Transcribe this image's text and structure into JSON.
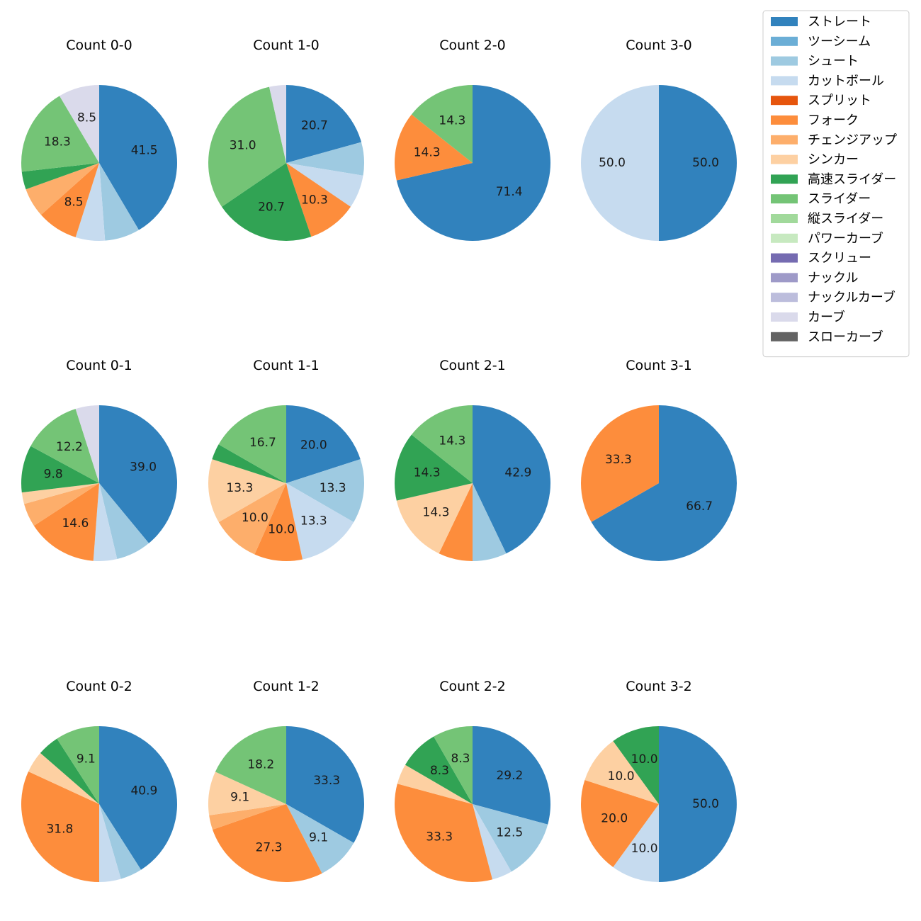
{
  "chart_data": {
    "type": "pie",
    "legend": {
      "placement": "top-right",
      "entries": [
        {
          "name": "ストレート",
          "color": "#3182bd"
        },
        {
          "name": "ツーシーム",
          "color": "#6baed6"
        },
        {
          "name": "シュート",
          "color": "#9ecae1"
        },
        {
          "name": "カットボール",
          "color": "#c6dbef"
        },
        {
          "name": "スプリット",
          "color": "#e6550d"
        },
        {
          "name": "フォーク",
          "color": "#fd8d3c"
        },
        {
          "name": "チェンジアップ",
          "color": "#fdae6b"
        },
        {
          "name": "シンカー",
          "color": "#fdd0a2"
        },
        {
          "name": "高速スライダー",
          "color": "#31a354"
        },
        {
          "name": "スライダー",
          "color": "#74c476"
        },
        {
          "name": "縦スライダー",
          "color": "#a1d99b"
        },
        {
          "name": "パワーカーブ",
          "color": "#c7e9c0"
        },
        {
          "name": "スクリュー",
          "color": "#756bb1"
        },
        {
          "name": "ナックル",
          "color": "#9e9ac8"
        },
        {
          "name": "ナックルカーブ",
          "color": "#bcbddc"
        },
        {
          "name": "カーブ",
          "color": "#dadaeb"
        },
        {
          "name": "スローカーブ",
          "color": "#636363"
        }
      ]
    },
    "charts": [
      {
        "title": "Count 0-0",
        "slices": [
          {
            "pitch": "ストレート",
            "value": 41.5,
            "label": "41.5"
          },
          {
            "pitch": "シュート",
            "value": 7.3,
            "label": ""
          },
          {
            "pitch": "カットボール",
            "value": 6.1,
            "label": ""
          },
          {
            "pitch": "フォーク",
            "value": 8.5,
            "label": "8.5"
          },
          {
            "pitch": "チェンジアップ",
            "value": 6.1,
            "label": ""
          },
          {
            "pitch": "高速スライダー",
            "value": 3.7,
            "label": ""
          },
          {
            "pitch": "スライダー",
            "value": 18.3,
            "label": "18.3"
          },
          {
            "pitch": "カーブ",
            "value": 8.5,
            "label": "8.5"
          }
        ]
      },
      {
        "title": "Count 1-0",
        "slices": [
          {
            "pitch": "ストレート",
            "value": 20.7,
            "label": "20.7"
          },
          {
            "pitch": "シュート",
            "value": 6.9,
            "label": ""
          },
          {
            "pitch": "カットボール",
            "value": 6.9,
            "label": ""
          },
          {
            "pitch": "フォーク",
            "value": 10.3,
            "label": "10.3"
          },
          {
            "pitch": "高速スライダー",
            "value": 20.7,
            "label": "20.7"
          },
          {
            "pitch": "スライダー",
            "value": 31.0,
            "label": "31.0"
          },
          {
            "pitch": "カーブ",
            "value": 3.5,
            "label": ""
          }
        ]
      },
      {
        "title": "Count 2-0",
        "slices": [
          {
            "pitch": "ストレート",
            "value": 71.4,
            "label": "71.4"
          },
          {
            "pitch": "フォーク",
            "value": 14.3,
            "label": "14.3"
          },
          {
            "pitch": "スライダー",
            "value": 14.3,
            "label": "14.3"
          }
        ]
      },
      {
        "title": "Count 3-0",
        "slices": [
          {
            "pitch": "ストレート",
            "value": 50.0,
            "label": "50.0"
          },
          {
            "pitch": "カットボール",
            "value": 50.0,
            "label": "50.0"
          }
        ]
      },
      {
        "title": "Count 0-1",
        "slices": [
          {
            "pitch": "ストレート",
            "value": 39.0,
            "label": "39.0"
          },
          {
            "pitch": "シュート",
            "value": 7.3,
            "label": ""
          },
          {
            "pitch": "カットボール",
            "value": 4.9,
            "label": ""
          },
          {
            "pitch": "フォーク",
            "value": 14.6,
            "label": "14.6"
          },
          {
            "pitch": "チェンジアップ",
            "value": 4.9,
            "label": ""
          },
          {
            "pitch": "シンカー",
            "value": 2.4,
            "label": ""
          },
          {
            "pitch": "高速スライダー",
            "value": 9.8,
            "label": "9.8"
          },
          {
            "pitch": "スライダー",
            "value": 12.2,
            "label": "12.2"
          },
          {
            "pitch": "カーブ",
            "value": 4.9,
            "label": ""
          }
        ]
      },
      {
        "title": "Count 1-1",
        "slices": [
          {
            "pitch": "ストレート",
            "value": 20.0,
            "label": "20.0"
          },
          {
            "pitch": "シュート",
            "value": 13.3,
            "label": "13.3"
          },
          {
            "pitch": "カットボール",
            "value": 13.3,
            "label": "13.3"
          },
          {
            "pitch": "フォーク",
            "value": 10.0,
            "label": "10.0"
          },
          {
            "pitch": "チェンジアップ",
            "value": 10.0,
            "label": "10.0"
          },
          {
            "pitch": "シンカー",
            "value": 13.3,
            "label": "13.3"
          },
          {
            "pitch": "高速スライダー",
            "value": 3.3,
            "label": ""
          },
          {
            "pitch": "スライダー",
            "value": 16.7,
            "label": "16.7"
          }
        ]
      },
      {
        "title": "Count 2-1",
        "slices": [
          {
            "pitch": "ストレート",
            "value": 42.9,
            "label": "42.9"
          },
          {
            "pitch": "シュート",
            "value": 7.1,
            "label": ""
          },
          {
            "pitch": "フォーク",
            "value": 7.1,
            "label": ""
          },
          {
            "pitch": "シンカー",
            "value": 14.3,
            "label": "14.3"
          },
          {
            "pitch": "高速スライダー",
            "value": 14.3,
            "label": "14.3"
          },
          {
            "pitch": "スライダー",
            "value": 14.3,
            "label": "14.3"
          }
        ]
      },
      {
        "title": "Count 3-1",
        "slices": [
          {
            "pitch": "ストレート",
            "value": 66.7,
            "label": "66.7"
          },
          {
            "pitch": "フォーク",
            "value": 33.3,
            "label": "33.3"
          }
        ]
      },
      {
        "title": "Count 0-2",
        "slices": [
          {
            "pitch": "ストレート",
            "value": 40.9,
            "label": "40.9"
          },
          {
            "pitch": "シュート",
            "value": 4.5,
            "label": ""
          },
          {
            "pitch": "カットボール",
            "value": 4.5,
            "label": ""
          },
          {
            "pitch": "フォーク",
            "value": 31.8,
            "label": "31.8"
          },
          {
            "pitch": "シンカー",
            "value": 4.5,
            "label": ""
          },
          {
            "pitch": "高速スライダー",
            "value": 4.5,
            "label": ""
          },
          {
            "pitch": "スライダー",
            "value": 9.1,
            "label": "9.1"
          }
        ]
      },
      {
        "title": "Count 1-2",
        "slices": [
          {
            "pitch": "ストレート",
            "value": 33.3,
            "label": "33.3"
          },
          {
            "pitch": "シュート",
            "value": 9.1,
            "label": "9.1"
          },
          {
            "pitch": "フォーク",
            "value": 27.3,
            "label": "27.3"
          },
          {
            "pitch": "チェンジアップ",
            "value": 3.0,
            "label": ""
          },
          {
            "pitch": "シンカー",
            "value": 9.1,
            "label": "9.1"
          },
          {
            "pitch": "スライダー",
            "value": 18.2,
            "label": "18.2"
          }
        ]
      },
      {
        "title": "Count 2-2",
        "slices": [
          {
            "pitch": "ストレート",
            "value": 29.2,
            "label": "29.2"
          },
          {
            "pitch": "シュート",
            "value": 12.5,
            "label": "12.5"
          },
          {
            "pitch": "カットボール",
            "value": 4.2,
            "label": ""
          },
          {
            "pitch": "フォーク",
            "value": 33.3,
            "label": "33.3"
          },
          {
            "pitch": "シンカー",
            "value": 4.2,
            "label": ""
          },
          {
            "pitch": "高速スライダー",
            "value": 8.3,
            "label": "8.3"
          },
          {
            "pitch": "スライダー",
            "value": 8.3,
            "label": "8.3"
          }
        ]
      },
      {
        "title": "Count 3-2",
        "slices": [
          {
            "pitch": "ストレート",
            "value": 50.0,
            "label": "50.0"
          },
          {
            "pitch": "カットボール",
            "value": 10.0,
            "label": "10.0"
          },
          {
            "pitch": "フォーク",
            "value": 20.0,
            "label": "20.0"
          },
          {
            "pitch": "シンカー",
            "value": 10.0,
            "label": "10.0"
          },
          {
            "pitch": "高速スライダー",
            "value": 10.0,
            "label": "10.0"
          }
        ]
      }
    ]
  }
}
